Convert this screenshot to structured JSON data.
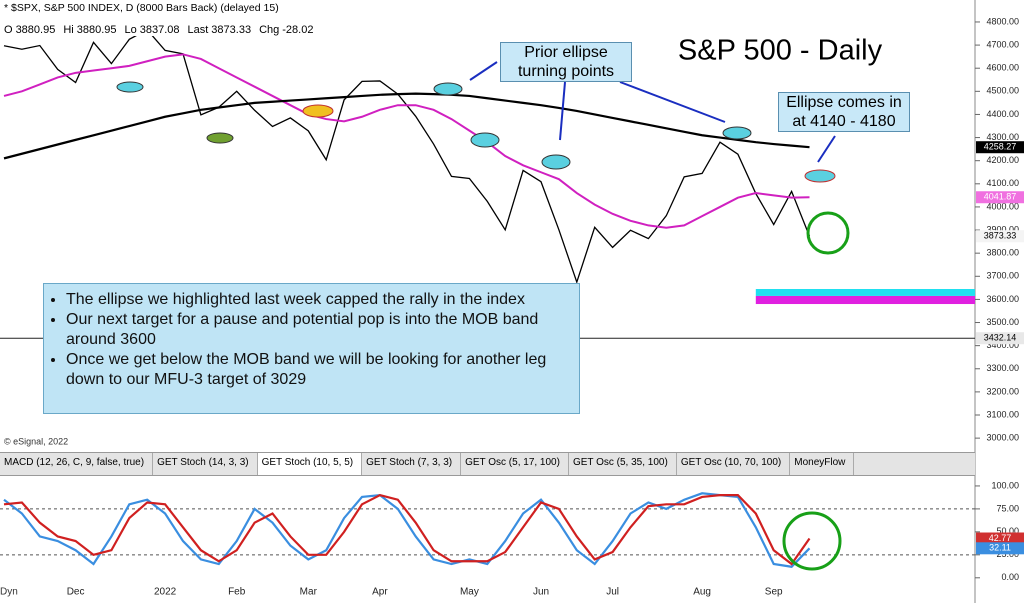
{
  "header": {
    "symbol_line": "* $SPX, S&P 500 INDEX, D (8000 Bars Back) (delayed 15)",
    "quote": [
      {
        "label": "O",
        "value": 3880.95
      },
      {
        "label": "Hi",
        "value": 3880.95
      },
      {
        "label": "Lo",
        "value": 3837.08
      },
      {
        "label": "Last",
        "value": 3873.33
      },
      {
        "label": "Chg",
        "value": -28.02
      }
    ]
  },
  "copyright": "© eSignal, 2022",
  "corner_label": "Dyn",
  "tabs": {
    "items": [
      "MACD (12, 26, C, 9, false, true)",
      "GET Stoch (14, 3, 3)",
      "GET Stoch (10, 5, 5)",
      "GET Stoch (7, 3, 3)",
      "GET Osc (5, 17, 100)",
      "GET Osc (5, 35, 100)",
      "GET Osc (10, 70, 100)",
      "MoneyFlow"
    ],
    "active": 2
  },
  "commentary": [
    "The ellipse we highlighted last week capped the rally in the index",
    "Our next target for a pause and potential pop is into the MOB band around 3600",
    "Once we get below the MOB band we will be looking for another leg down to our MFU-3 target of 3029"
  ],
  "chart_data": [
    {
      "type": "line",
      "title": "S&P 500 - Daily",
      "callouts": [
        [
          "Prior ellipse",
          "turning points"
        ],
        [
          "Ellipse comes in",
          "at 4140 - 4180"
        ]
      ],
      "categories": [
        null,
        null,
        null,
        null,
        "Dec",
        null,
        null,
        null,
        null,
        "2022",
        null,
        null,
        null,
        "Feb",
        null,
        null,
        null,
        "Mar",
        null,
        null,
        null,
        "Apr",
        null,
        null,
        null,
        null,
        "May",
        null,
        null,
        null,
        "Jun",
        null,
        null,
        null,
        "Jul",
        null,
        null,
        null,
        null,
        "Aug",
        null,
        null,
        null,
        "Sep",
        null,
        null
      ],
      "series": [
        {
          "color": "#000000",
          "width": 1.3,
          "values": [
            4697,
            4682,
            4698,
            4595,
            4538,
            4712,
            4620,
            4725,
            4766,
            4677,
            4662,
            4398,
            4431,
            4500,
            4418,
            4348,
            4385,
            4329,
            4204,
            4463,
            4543,
            4545,
            4488,
            4392,
            4272,
            4132,
            4123,
            4024,
            3901,
            4158,
            4109,
            3901,
            3675,
            3912,
            3825,
            3899,
            3863,
            3962,
            4130,
            4145,
            4280,
            4228,
            4058,
            3924,
            4067,
            3873.33
          ]
        },
        {
          "color": "#d020c0",
          "width": 2,
          "values": [
            4480,
            4500,
            4530,
            4560,
            4580,
            4590,
            4600,
            4610,
            4630,
            4650,
            4660,
            4640,
            4600,
            4560,
            4520,
            4480,
            4440,
            4400,
            4380,
            4370,
            4390,
            4420,
            4440,
            4440,
            4420,
            4380,
            4330,
            4280,
            4220,
            4180,
            4150,
            4120,
            4060,
            4010,
            3970,
            3940,
            3920,
            3910,
            3920,
            3960,
            4000,
            4040,
            4060,
            4050,
            4040,
            4041.87
          ]
        },
        {
          "color": "#000000",
          "width": 2.2,
          "values": [
            4210,
            4230,
            4250,
            4270,
            4290,
            4310,
            4330,
            4350,
            4370,
            4390,
            4405,
            4420,
            4430,
            4440,
            4450,
            4455,
            4460,
            4465,
            4470,
            4475,
            4480,
            4485,
            4488,
            4490,
            4488,
            4485,
            4480,
            4470,
            4460,
            4450,
            4440,
            4428,
            4415,
            4400,
            4385,
            4370,
            4355,
            4340,
            4325,
            4310,
            4300,
            4290,
            4280,
            4272,
            4265,
            4258.27
          ]
        }
      ],
      "last_labels": [
        {
          "series": 2,
          "bg": "#000000",
          "fg": "#ffffff"
        },
        {
          "series": 1,
          "bg": "#f070e0",
          "fg": "#ffffff"
        },
        {
          "series": 0,
          "bg": "#f4f4f4",
          "fg": "#000000"
        }
      ],
      "reference_line": 3432.14,
      "bands": [
        {
          "from": 3580,
          "to": 3615,
          "color": "#e020e0",
          "start": 42
        },
        {
          "from": 3615,
          "to": 3645,
          "color": "#20e0f0",
          "start": 42
        }
      ],
      "ylim": [
        2940,
        4895
      ],
      "yticks": [
        {
          "value": 3000,
          "label": "3000.00"
        },
        {
          "value": 3100,
          "label": "3100.00"
        },
        {
          "value": 3200,
          "label": "3200.00"
        },
        {
          "value": 3300,
          "label": "3300.00"
        },
        {
          "value": 3400,
          "label": "3400.00"
        },
        {
          "value": 3500,
          "label": "3500.00"
        },
        {
          "value": 3600,
          "label": "3600.00"
        },
        {
          "value": 3700,
          "label": "3700.00"
        },
        {
          "value": 3800,
          "label": "3800.00"
        },
        {
          "value": 3900,
          "label": "3900.00"
        },
        {
          "value": 4000,
          "label": "4000.00"
        },
        {
          "value": 4100,
          "label": "4100.00"
        },
        {
          "value": 4200,
          "label": "4200.00"
        },
        {
          "value": 4300,
          "label": "4300.00"
        },
        {
          "value": 4400,
          "label": "4400.00"
        },
        {
          "value": 4500,
          "label": "4500.00"
        },
        {
          "value": 4600,
          "label": "4600.00"
        },
        {
          "value": 4700,
          "label": "4700.00"
        },
        {
          "value": 4800,
          "label": "4800.00"
        }
      ]
    },
    {
      "type": "line",
      "series": [
        {
          "color": "#3a8ee0",
          "width": 2.2,
          "values": [
            85,
            70,
            45,
            40,
            30,
            15,
            45,
            80,
            85,
            70,
            40,
            20,
            15,
            40,
            75,
            60,
            35,
            20,
            30,
            65,
            88,
            90,
            75,
            45,
            20,
            15,
            20,
            15,
            40,
            70,
            85,
            60,
            30,
            15,
            40,
            70,
            82,
            75,
            85,
            92,
            90,
            88,
            55,
            15,
            12,
            32.11
          ]
        },
        {
          "color": "#d02020",
          "width": 2.2,
          "values": [
            80,
            82,
            60,
            45,
            40,
            25,
            30,
            65,
            82,
            80,
            55,
            30,
            18,
            30,
            60,
            70,
            45,
            25,
            25,
            50,
            80,
            90,
            85,
            60,
            30,
            18,
            18,
            18,
            28,
            55,
            82,
            75,
            45,
            20,
            28,
            55,
            78,
            80,
            80,
            88,
            90,
            90,
            70,
            30,
            15,
            42.77
          ]
        }
      ],
      "last_labels": [
        {
          "series": 1,
          "bg": "#d03030",
          "fg": "#ffffff"
        },
        {
          "series": 0,
          "bg": "#3a8ee0",
          "fg": "#ffffff"
        }
      ],
      "dashed_levels": [
        25,
        75
      ],
      "ylim": [
        -22,
        113
      ],
      "yticks": [
        {
          "value": 0,
          "label": "0.00"
        },
        {
          "value": 25,
          "label": "25.00"
        },
        {
          "value": 50,
          "label": "50.00"
        },
        {
          "value": 75,
          "label": "75.00"
        },
        {
          "value": 100,
          "label": "100.00"
        }
      ]
    }
  ]
}
